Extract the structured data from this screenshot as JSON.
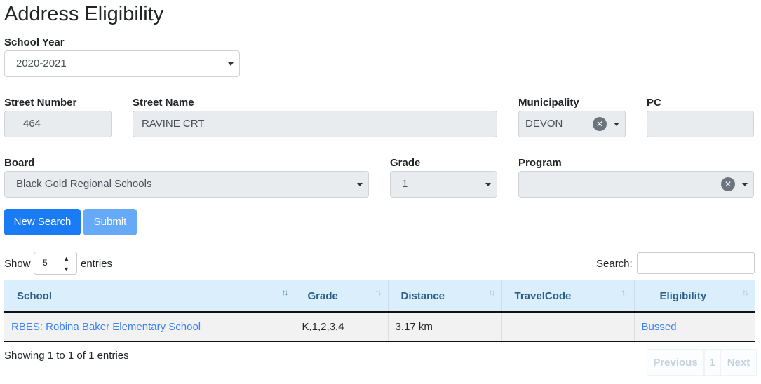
{
  "page": {
    "title": "Address Eligibility"
  },
  "form": {
    "school_year": {
      "label": "School Year",
      "value": "2020-2021"
    },
    "street_number": {
      "label": "Street Number",
      "value": "464"
    },
    "street_name": {
      "label": "Street Name",
      "value": "RAVINE CRT"
    },
    "municipality": {
      "label": "Municipality",
      "value": "DEVON"
    },
    "pc": {
      "label": "PC",
      "value": ""
    },
    "board": {
      "label": "Board",
      "value": "Black Gold Regional Schools"
    },
    "grade": {
      "label": "Grade",
      "value": "1"
    },
    "program": {
      "label": "Program",
      "value": ""
    },
    "new_search": "New Search",
    "submit": "Submit"
  },
  "table_controls": {
    "show": "Show",
    "entries_value": "5",
    "entries": "entries",
    "search_label": "Search:"
  },
  "table": {
    "columns": [
      "School",
      "Grade",
      "Distance",
      "TravelCode",
      "Eligibility"
    ],
    "rows": [
      {
        "school": "RBES: Robina Baker Elementary School",
        "grade": "K,1,2,3,4",
        "distance": "3.17 km",
        "travel_code": "",
        "eligibility": "Bussed"
      }
    ]
  },
  "footer": {
    "info": "Showing 1 to 1 of 1 entries",
    "previous": "Previous",
    "page": "1",
    "next": "Next"
  },
  "colors": {
    "primary": "#1a7cf5",
    "submit_disabled": "#66aaf7",
    "header_bg": "#dbeefc",
    "link": "#3b82f6"
  }
}
